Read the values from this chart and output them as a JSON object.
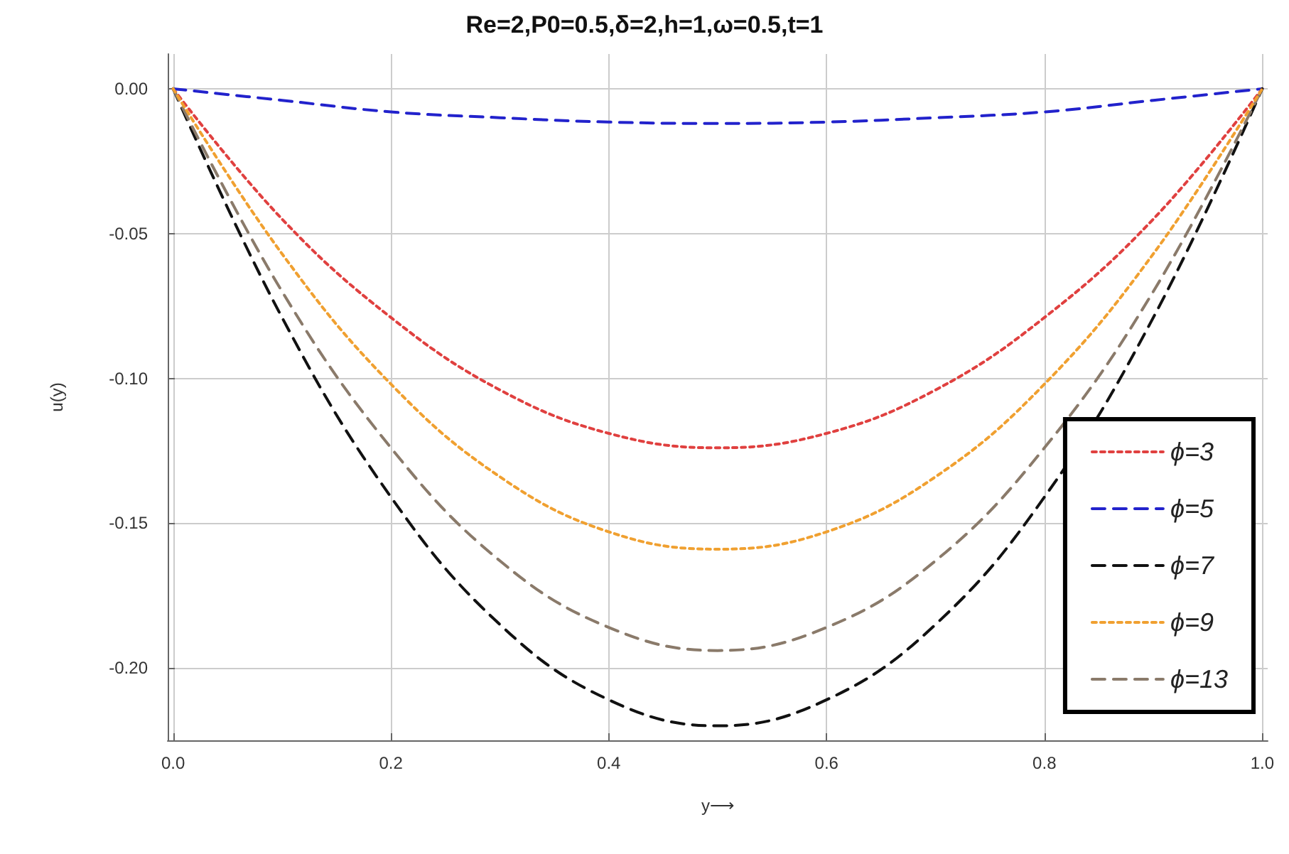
{
  "chart_data": {
    "type": "line",
    "title": "Re=2,P0=0.5,δ=2,h=1,ω=0.5,t=1",
    "xlabel": "y⟶",
    "ylabel": "u(y)",
    "x": [
      0,
      0.1,
      0.2,
      0.3,
      0.4,
      0.5,
      0.6,
      0.7,
      0.8,
      0.9,
      1
    ],
    "series": [
      {
        "name": "ϕ=3",
        "color": "#e0403f",
        "line_style": "dotted",
        "values": [
          0,
          -0.045,
          -0.079,
          -0.104,
          -0.119,
          -0.124,
          -0.119,
          -0.104,
          -0.079,
          -0.045,
          0
        ]
      },
      {
        "name": "ϕ=5",
        "color": "#2222cc",
        "line_style": "dashed",
        "values": [
          0,
          -0.004,
          -0.008,
          -0.01,
          -0.0115,
          -0.012,
          -0.0115,
          -0.01,
          -0.008,
          -0.004,
          0
        ]
      },
      {
        "name": "ϕ=7",
        "color": "#111111",
        "line_style": "dashed",
        "values": [
          0,
          -0.079,
          -0.141,
          -0.185,
          -0.211,
          -0.22,
          -0.211,
          -0.185,
          -0.141,
          -0.079,
          0
        ]
      },
      {
        "name": "ϕ=9",
        "color": "#f0a030",
        "line_style": "dotted",
        "values": [
          0,
          -0.057,
          -0.102,
          -0.134,
          -0.153,
          -0.159,
          -0.153,
          -0.134,
          -0.102,
          -0.057,
          0
        ]
      },
      {
        "name": "ϕ=13",
        "color": "#8a7a6a",
        "line_style": "dashed",
        "values": [
          0,
          -0.07,
          -0.124,
          -0.163,
          -0.186,
          -0.194,
          -0.186,
          -0.163,
          -0.124,
          -0.07,
          0
        ]
      }
    ],
    "xlim": [
      -0.005,
      1.005
    ],
    "ylim": [
      -0.225,
      0.012
    ],
    "xticks": [
      {
        "value": 0,
        "label": "0.0"
      },
      {
        "value": 0.2,
        "label": "0.2"
      },
      {
        "value": 0.4,
        "label": "0.4"
      },
      {
        "value": 0.6,
        "label": "0.6"
      },
      {
        "value": 0.8,
        "label": "0.8"
      },
      {
        "value": 1,
        "label": "1.0"
      }
    ],
    "yticks": [
      {
        "value": 0,
        "label": "0.00"
      },
      {
        "value": -0.05,
        "label": "-0.05"
      },
      {
        "value": -0.1,
        "label": "-0.10"
      },
      {
        "value": -0.15,
        "label": "-0.15"
      },
      {
        "value": -0.2,
        "label": "-0.20"
      }
    ],
    "grid": true,
    "legend": "bottom right",
    "marker": "none"
  }
}
